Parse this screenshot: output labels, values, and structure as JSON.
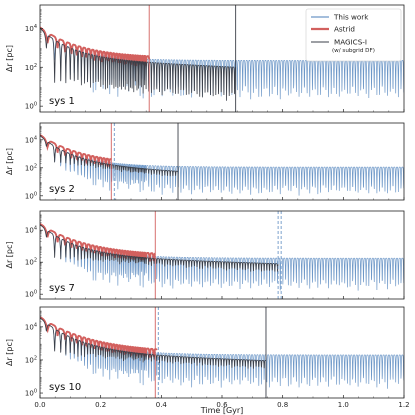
{
  "colors": {
    "this_work": "#6e98c8",
    "astrid": "#d2605e",
    "magics": "#3b3f48",
    "frame": "#222222"
  },
  "chart_data": {
    "type": "line",
    "xlabel": "Time [Gyr]",
    "ylabel": "Δr [pc]",
    "xlim": [
      0.0,
      1.2
    ],
    "ylim_log10": [
      -0.3,
      5.2
    ],
    "x_ticks": [
      "0.0",
      "0.2",
      "0.4",
      "0.6",
      "0.8",
      "1.0",
      "1.2"
    ],
    "y_ticks": [
      {
        "base": "10",
        "exp": "0"
      },
      {
        "base": "10",
        "exp": "2"
      },
      {
        "base": "10",
        "exp": "4"
      }
    ],
    "legend": {
      "placement": "top-right",
      "entries": [
        {
          "label": "This work",
          "sub": "",
          "color": "#6e98c8"
        },
        {
          "label": "Astrid",
          "sub": "",
          "color": "#d2605e"
        },
        {
          "label": "MAGICS-I",
          "sub": "(w/ subgrid DF)",
          "color": "#3b3f48"
        }
      ]
    },
    "series_names": [
      "This work",
      "Astrid",
      "MAGICS-I (w/ subgrid DF)"
    ],
    "panels": [
      {
        "label": "sys 1",
        "start_log10": 4.0,
        "this_work_plateau": 2.35,
        "astrid_end": 0.36,
        "magics_end": 0.645,
        "magics_end_floor": 0.2,
        "vlines": [
          {
            "x": 0.36,
            "color": "astrid",
            "dashed": false
          },
          {
            "x": 0.645,
            "color": "magics",
            "dashed": false
          }
        ]
      },
      {
        "label": "sys 2",
        "start_log10": 4.3,
        "this_work_plateau": 2.05,
        "astrid_end": 0.235,
        "magics_end": 0.455,
        "magics_end_floor": 1.6,
        "vlines": [
          {
            "x": 0.235,
            "color": "astrid",
            "dashed": false
          },
          {
            "x": 0.245,
            "color": "this_work",
            "dashed": true
          },
          {
            "x": 0.455,
            "color": "magics",
            "dashed": false
          }
        ]
      },
      {
        "label": "sys 7",
        "start_log10": 4.35,
        "this_work_plateau": 2.25,
        "astrid_end": 0.38,
        "magics_end": 0.785,
        "magics_end_floor": 1.4,
        "vlines": [
          {
            "x": 0.38,
            "color": "astrid",
            "dashed": false
          },
          {
            "x": 0.785,
            "color": "this_work",
            "dashed": true
          },
          {
            "x": 0.795,
            "color": "this_work",
            "dashed": true
          }
        ]
      },
      {
        "label": "sys 10",
        "start_log10": 4.55,
        "this_work_plateau": 2.3,
        "astrid_end": 0.385,
        "magics_end": 0.745,
        "magics_end_floor": 1.5,
        "vlines": [
          {
            "x": 0.38,
            "color": "astrid",
            "dashed": false
          },
          {
            "x": 0.39,
            "color": "this_work",
            "dashed": true
          },
          {
            "x": 0.745,
            "color": "magics",
            "dashed": false
          }
        ]
      }
    ]
  }
}
